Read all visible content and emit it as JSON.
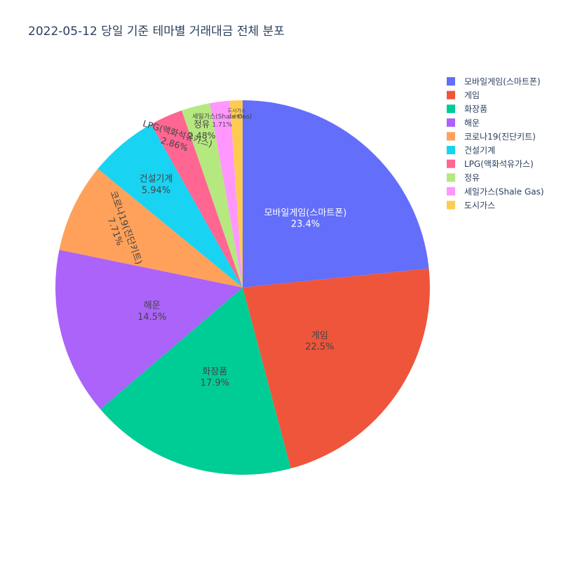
{
  "chart_data": {
    "type": "pie",
    "title": "2022-05-12 당일 기준 테마별 거래대금 전체 분포",
    "slices": [
      {
        "label": "모바일게임(스마트폰)",
        "value": 23.4,
        "display": "23.4%",
        "color": "#636efa",
        "text_color": "#ffffff"
      },
      {
        "label": "게임",
        "value": 22.5,
        "display": "22.5%",
        "color": "#ef553b",
        "text_color": "#444444"
      },
      {
        "label": "화장품",
        "value": 17.9,
        "display": "17.9%",
        "color": "#00cc96",
        "text_color": "#444444"
      },
      {
        "label": "해운",
        "value": 14.5,
        "display": "14.5%",
        "color": "#ab63fa",
        "text_color": "#444444"
      },
      {
        "label": "코로나19(진단키트)",
        "value": 7.71,
        "display": "7.71%",
        "color": "#ffa15a",
        "text_color": "#444444"
      },
      {
        "label": "건설기계",
        "value": 5.94,
        "display": "5.94%",
        "color": "#19d3f3",
        "text_color": "#444444"
      },
      {
        "label": "LPG(액화석유가스)",
        "value": 2.86,
        "display": "2.86%",
        "color": "#ff6692",
        "text_color": "#444444"
      },
      {
        "label": "정유",
        "value": 2.48,
        "display": "2.48%",
        "color": "#b6e880",
        "text_color": "#444444"
      },
      {
        "label": "세일가스(Shale Gas)",
        "value": 1.71,
        "display": "1.71%",
        "color": "#ff97ff",
        "text_color": "#444444"
      },
      {
        "label": "도시가스",
        "value": 1.09,
        "display": "1.09%",
        "color": "#fecb52",
        "text_color": "#444444"
      }
    ],
    "direction": "clockwise",
    "start": "12 o'clock",
    "legend": "top-right"
  }
}
